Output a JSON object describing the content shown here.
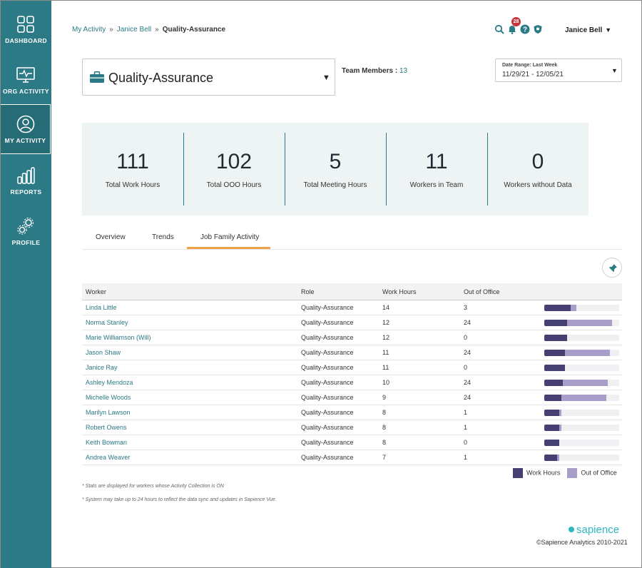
{
  "sidebar": {
    "items": [
      {
        "label": "DASHBOARD",
        "icon": "dashboard-grid-icon"
      },
      {
        "label": "ORG ACTIVITY",
        "icon": "monitor-pulse-icon"
      },
      {
        "label": "MY ACTIVITY",
        "icon": "user-circle-icon",
        "active": true
      },
      {
        "label": "REPORTS",
        "icon": "bar-chart-icon"
      },
      {
        "label": "PROFILE",
        "icon": "gears-icon"
      }
    ]
  },
  "breadcrumb": {
    "root": "My Activity",
    "user": "Janice Bell",
    "current": "Quality-Assurance",
    "separator": "»"
  },
  "header": {
    "notification_count": "28",
    "user_name": "Janice Bell",
    "user_caret": "▼"
  },
  "team": {
    "name": "Quality-Assurance",
    "caret": "▼",
    "members_label": "Team Members :",
    "members_count": "13"
  },
  "date_range": {
    "label": "Date Range: Last Week",
    "value": "11/29/21 - 12/05/21",
    "caret": "▼"
  },
  "stats": [
    {
      "value": "111",
      "label": "Total Work Hours"
    },
    {
      "value": "102",
      "label": "Total OOO Hours"
    },
    {
      "value": "5",
      "label": "Total Meeting Hours"
    },
    {
      "value": "11",
      "label": "Workers in Team"
    },
    {
      "value": "0",
      "label": "Workers without Data"
    }
  ],
  "tabs": [
    {
      "label": "Overview"
    },
    {
      "label": "Trends"
    },
    {
      "label": "Job Family Activity",
      "active": true
    }
  ],
  "table": {
    "headers": [
      "Worker",
      "Role",
      "Work Hours",
      "Out of Office"
    ],
    "rows": [
      {
        "worker": "Linda Little",
        "role": "Quality-Assurance",
        "work": "14",
        "ooo": "3"
      },
      {
        "worker": "Norma Stanley",
        "role": "Quality-Assurance",
        "work": "12",
        "ooo": "24"
      },
      {
        "worker": "Marie Williamson (Will)",
        "role": "Quality-Assurance",
        "work": "12",
        "ooo": "0"
      },
      {
        "worker": "Jason Shaw",
        "role": "Quality-Assurance",
        "work": "11",
        "ooo": "24"
      },
      {
        "worker": "Janice Ray",
        "role": "Quality-Assurance",
        "work": "11",
        "ooo": "0"
      },
      {
        "worker": "Ashley Mendoza",
        "role": "Quality-Assurance",
        "work": "10",
        "ooo": "24"
      },
      {
        "worker": "Michelle Woods",
        "role": "Quality-Assurance",
        "work": "9",
        "ooo": "24"
      },
      {
        "worker": "Marilyn Lawson",
        "role": "Quality-Assurance",
        "work": "8",
        "ooo": "1"
      },
      {
        "worker": "Robert Owens",
        "role": "Quality-Assurance",
        "work": "8",
        "ooo": "1"
      },
      {
        "worker": "Keith Bowman",
        "role": "Quality-Assurance",
        "work": "8",
        "ooo": "0"
      },
      {
        "worker": "Andrea Weaver",
        "role": "Quality-Assurance",
        "work": "7",
        "ooo": "1"
      }
    ]
  },
  "legend": {
    "work": "Work Hours",
    "ooo": "Out of Office"
  },
  "colors": {
    "work": "#463f72",
    "ooo": "#a99dc9",
    "accent": "#2c7a86",
    "tab_underline": "#f0a04a"
  },
  "notes": [
    "* Stats are displayed for workers whose Activity Collection is ON",
    "* System may take up to 24 hours to reflect the data sync and updates in Sapience Vue."
  ],
  "footer": {
    "brand": "sapience",
    "copyright": "©Sapience Analytics 2010-2021"
  }
}
